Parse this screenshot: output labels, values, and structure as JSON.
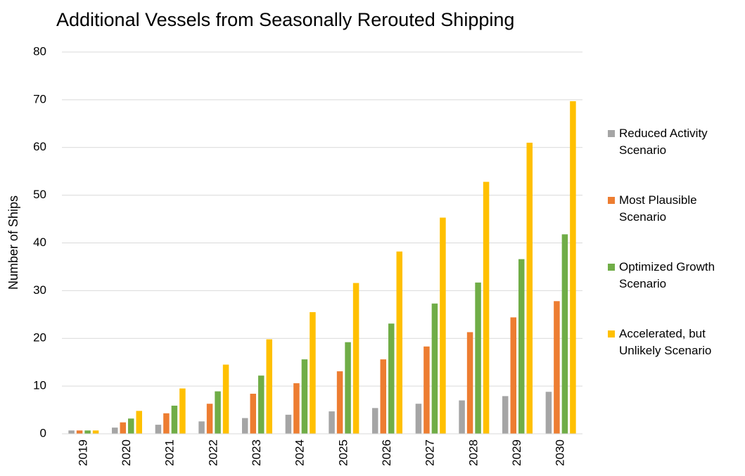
{
  "chart_data": {
    "type": "bar",
    "title": "Additional Vessels from Seasonally Rerouted Shipping",
    "y_label": "Number of Ships",
    "categories": [
      "2019",
      "2020",
      "2021",
      "2022",
      "2023",
      "2024",
      "2025",
      "2026",
      "2027",
      "2028",
      "2029",
      "2030"
    ],
    "series": [
      {
        "name": "Reduced Activity Scenario",
        "color": "#a5a5a5",
        "values": [
          0.7,
          1.3,
          1.9,
          2.6,
          3.3,
          4.0,
          4.7,
          5.4,
          6.3,
          7.0,
          7.9,
          8.8
        ]
      },
      {
        "name": "Most Plausible Scenario",
        "color": "#ed7d31",
        "values": [
          0.7,
          2.4,
          4.3,
          6.3,
          8.4,
          10.6,
          13.1,
          15.6,
          18.3,
          21.3,
          24.4,
          27.8
        ]
      },
      {
        "name": "Optimized Growth Scenario",
        "color": "#70ad47",
        "values": [
          0.7,
          3.2,
          5.9,
          8.9,
          12.2,
          15.6,
          19.2,
          23.1,
          27.3,
          31.7,
          36.6,
          41.8
        ]
      },
      {
        "name": "Accelerated, but Unlikely Scenario",
        "color": "#ffc000",
        "values": [
          0.7,
          4.8,
          9.5,
          14.5,
          19.8,
          25.5,
          31.6,
          38.2,
          45.3,
          52.8,
          61.0,
          69.7
        ]
      }
    ],
    "ylim": [
      0,
      80
    ],
    "yticks": [
      0,
      10,
      20,
      30,
      40,
      50,
      60,
      70,
      80
    ],
    "grid": true,
    "legend": "right"
  }
}
